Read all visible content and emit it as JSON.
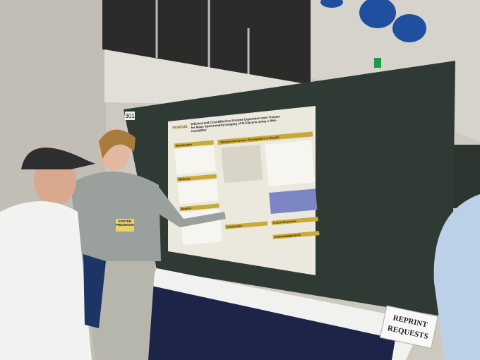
{
  "poster": {
    "board_number": "301",
    "logo": "PURDUE",
    "title": "Efficient and Cost-Effective Enzyme Deposition onto Tissues for Mass Spectrometry Imaging of N-Glycans using a Mini-Humidifier",
    "sections": [
      "Introduction",
      "Methods",
      "Results",
      "Mechanical Sprayer Development & Results",
      "Conclusion",
      "Future Directions",
      "Acknowledgements"
    ]
  },
  "badge": "POSTER PRESENTER",
  "sign": [
    "REPRINT",
    "REQUESTS"
  ]
}
